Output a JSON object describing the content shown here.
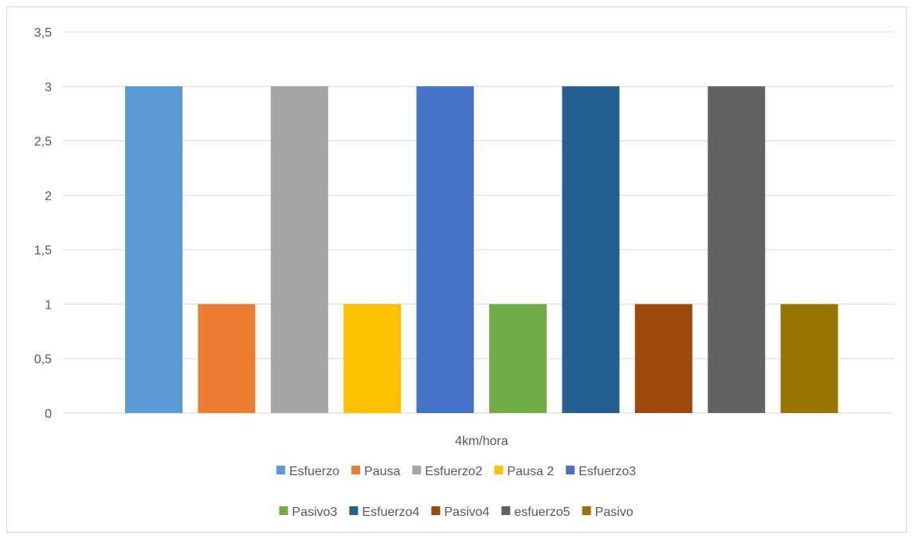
{
  "chart_data": {
    "type": "bar",
    "title": "",
    "xlabel": "",
    "ylabel": "",
    "categories": [
      "4km/hora"
    ],
    "ylim": [
      0,
      3.5
    ],
    "y_ticks": [
      "0",
      "0,5",
      "1",
      "1,5",
      "2",
      "2,5",
      "3",
      "3,5"
    ],
    "grid": true,
    "legend_position": "bottom",
    "series": [
      {
        "name": "Esfuerzo",
        "values": [
          3
        ],
        "color": "#5b9bd5"
      },
      {
        "name": "Pausa",
        "values": [
          1
        ],
        "color": "#ed7d31"
      },
      {
        "name": "Esfuerzo2",
        "values": [
          3
        ],
        "color": "#a5a5a5"
      },
      {
        "name": "Pausa 2",
        "values": [
          1
        ],
        "color": "#ffc000"
      },
      {
        "name": "Esfuerzo3",
        "values": [
          3
        ],
        "color": "#4472c4"
      },
      {
        "name": "Pasivo3",
        "values": [
          1
        ],
        "color": "#70ad47"
      },
      {
        "name": "Esfuerzo4",
        "values": [
          3
        ],
        "color": "#255e91"
      },
      {
        "name": "Pasivo4",
        "values": [
          1
        ],
        "color": "#9e480e"
      },
      {
        "name": "esfuerzo5",
        "values": [
          3
        ],
        "color": "#636363"
      },
      {
        "name": "Pasivo",
        "values": [
          1
        ],
        "color": "#997300"
      }
    ]
  }
}
